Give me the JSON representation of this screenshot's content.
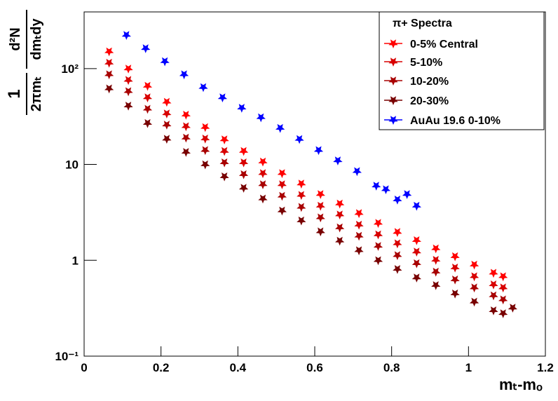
{
  "chart_data": {
    "type": "scatter",
    "legend_title": "π+ Spectra",
    "xlabel": "mₜ-mₒ",
    "ylabel": [
      "1",
      "2πmₜ",
      "d²N",
      "dmₜdy"
    ],
    "xlim": [
      0,
      1.2
    ],
    "xticks": [
      0,
      0.2,
      0.4,
      0.6,
      0.8,
      1,
      1.2
    ],
    "ylim": [
      0.1,
      390
    ],
    "yscale": "log",
    "yticks": [
      {
        "value": 0.1,
        "label": "10⁻¹"
      },
      1,
      10,
      {
        "value": 100,
        "label": "10²"
      }
    ],
    "legend": "top-right",
    "series": [
      {
        "name": "0-5% Central",
        "color": "#ff0000",
        "x": [
          0.065,
          0.115,
          0.165,
          0.215,
          0.265,
          0.315,
          0.365,
          0.415,
          0.465,
          0.515,
          0.565,
          0.615,
          0.665,
          0.715,
          0.765,
          0.815,
          0.865,
          0.915,
          0.965,
          1.015,
          1.065,
          1.09
        ],
        "values": [
          151,
          100,
          66,
          45,
          33,
          24.5,
          18.2,
          13.8,
          10.7,
          8.1,
          6.3,
          4.9,
          3.9,
          3.1,
          2.45,
          1.97,
          1.62,
          1.33,
          1.1,
          0.9,
          0.74,
          0.68
        ]
      },
      {
        "name": "5-10%",
        "color": "#d80000",
        "x": [
          0.065,
          0.115,
          0.165,
          0.215,
          0.265,
          0.315,
          0.365,
          0.415,
          0.465,
          0.515,
          0.565,
          0.615,
          0.665,
          0.715,
          0.765,
          0.815,
          0.865,
          0.915,
          0.965,
          1.015,
          1.065,
          1.09
        ],
        "values": [
          115,
          76,
          50,
          34,
          25,
          18.6,
          13.8,
          10.5,
          8.1,
          6.2,
          4.8,
          3.7,
          3.0,
          2.35,
          1.86,
          1.5,
          1.23,
          1.01,
          0.84,
          0.68,
          0.56,
          0.52
        ]
      },
      {
        "name": "10-20%",
        "color": "#a80000",
        "x": [
          0.065,
          0.115,
          0.165,
          0.215,
          0.265,
          0.315,
          0.365,
          0.415,
          0.465,
          0.515,
          0.565,
          0.615,
          0.665,
          0.715,
          0.765,
          0.815,
          0.865,
          0.915,
          0.965,
          1.015,
          1.065,
          1.09
        ],
        "values": [
          87,
          58,
          38,
          26,
          19,
          14.1,
          10.5,
          7.9,
          6.2,
          4.7,
          3.6,
          2.8,
          2.2,
          1.8,
          1.41,
          1.13,
          0.93,
          0.76,
          0.63,
          0.52,
          0.43,
          0.39
        ]
      },
      {
        "name": "20-30%",
        "color": "#780000",
        "x": [
          0.065,
          0.115,
          0.165,
          0.215,
          0.265,
          0.315,
          0.365,
          0.415,
          0.465,
          0.515,
          0.565,
          0.615,
          0.665,
          0.715,
          0.765,
          0.815,
          0.865,
          0.915,
          0.965,
          1.015,
          1.065,
          1.09,
          1.115
        ],
        "values": [
          62,
          41,
          27,
          18.5,
          13.5,
          10,
          7.5,
          5.7,
          4.4,
          3.3,
          2.6,
          2.0,
          1.6,
          1.27,
          1.0,
          0.81,
          0.66,
          0.55,
          0.45,
          0.37,
          0.3,
          0.28,
          0.32
        ]
      },
      {
        "name": "AuAu 19.6 0-10%",
        "color": "#0000ff",
        "x": [
          0.11,
          0.16,
          0.21,
          0.26,
          0.31,
          0.36,
          0.41,
          0.46,
          0.51,
          0.56,
          0.61,
          0.66,
          0.71,
          0.76,
          0.785,
          0.815,
          0.84,
          0.865
        ],
        "values": [
          224,
          163,
          119,
          87,
          64,
          50,
          39,
          31,
          24,
          18.4,
          14.1,
          11,
          8.5,
          6.0,
          5.5,
          4.3,
          4.9,
          3.7
        ]
      }
    ]
  }
}
